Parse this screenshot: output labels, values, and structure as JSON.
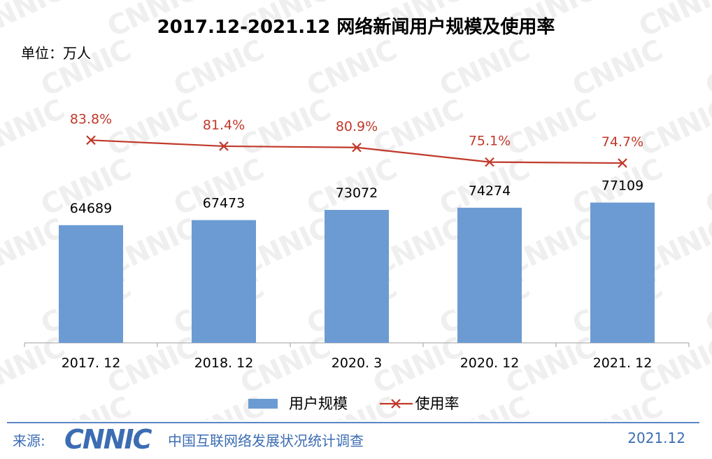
{
  "title": "2017.12-2021.12 网络新闻用户规模及使用率",
  "unit_label": "单位：万人",
  "watermark": "CNNIC",
  "chart_data": {
    "type": "bar",
    "categories": [
      "2017. 12",
      "2018. 12",
      "2020. 3",
      "2020. 12",
      "2021. 12"
    ],
    "series": [
      {
        "name": "用户规模",
        "kind": "bar",
        "values": [
          64689,
          67473,
          73072,
          74274,
          77109
        ],
        "labels": [
          "64689",
          "67473",
          "73072",
          "74274",
          "77109"
        ],
        "color": "#6b9bd2"
      },
      {
        "name": "使用率",
        "kind": "line",
        "values": [
          83.8,
          81.4,
          80.9,
          75.1,
          74.7
        ],
        "labels": [
          "83.8%",
          "81.4%",
          "80.9%",
          "75.1%",
          "74.7%"
        ],
        "color": "#c0392b"
      }
    ],
    "legend_position": "bottom",
    "grid": false
  },
  "footer": {
    "source_label": "来源:",
    "logo_text": "CNNIC",
    "survey": "中国互联网络发展状况统计调查",
    "date": "2021.12"
  }
}
